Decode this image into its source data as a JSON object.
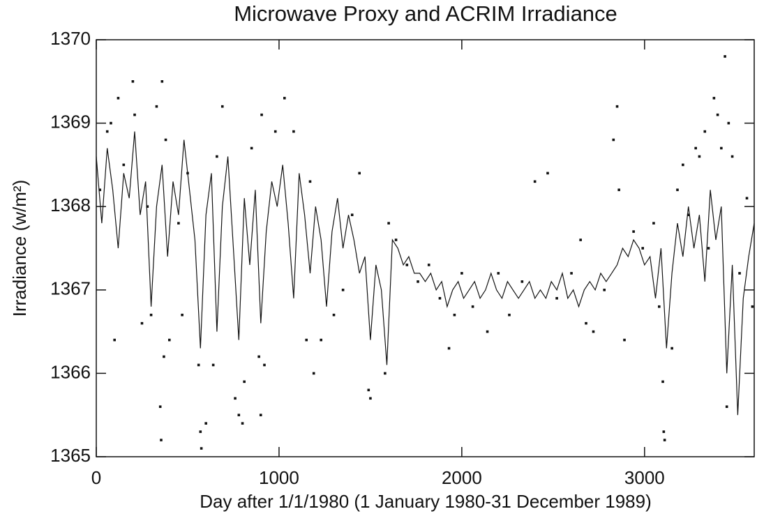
{
  "chart_data": {
    "type": "combo",
    "title": "Microwave Proxy and ACRIM Irradiance",
    "x_label": "Day after 1/1/1980 (1 January 1980-31 December 1989)",
    "y_label": "Irradiance (w/m²)",
    "xlim": [
      0,
      3600
    ],
    "xticks": [
      0,
      1000,
      2000,
      3000
    ],
    "ylim": [
      1365,
      1370
    ],
    "yticks": [
      1365,
      1366,
      1367,
      1368,
      1369,
      1370
    ],
    "series": [
      {
        "type": "line",
        "color": "#111111",
        "x": [
          0,
          30,
          60,
          90,
          120,
          150,
          180,
          210,
          240,
          270,
          300,
          330,
          360,
          390,
          420,
          450,
          480,
          510,
          540,
          570,
          600,
          630,
          660,
          690,
          720,
          750,
          780,
          810,
          840,
          870,
          900,
          930,
          960,
          990,
          1020,
          1050,
          1080,
          1110,
          1140,
          1170,
          1200,
          1230,
          1260,
          1290,
          1320,
          1350,
          1380,
          1410,
          1440,
          1470,
          1500,
          1530,
          1560,
          1590,
          1620,
          1650,
          1680,
          1710,
          1740,
          1770,
          1800,
          1830,
          1860,
          1890,
          1920,
          1950,
          1980,
          2010,
          2040,
          2070,
          2100,
          2130,
          2160,
          2190,
          2220,
          2250,
          2280,
          2310,
          2340,
          2370,
          2400,
          2430,
          2460,
          2490,
          2520,
          2550,
          2580,
          2610,
          2640,
          2670,
          2700,
          2730,
          2760,
          2790,
          2820,
          2850,
          2880,
          2910,
          2940,
          2970,
          3000,
          3030,
          3060,
          3090,
          3120,
          3150,
          3180,
          3210,
          3240,
          3270,
          3300,
          3330,
          3360,
          3390,
          3420,
          3450,
          3480,
          3510,
          3540,
          3570,
          3600
        ],
        "values": [
          1368.6,
          1367.8,
          1368.7,
          1368.2,
          1367.5,
          1368.4,
          1368.1,
          1368.9,
          1367.9,
          1368.3,
          1366.8,
          1368.0,
          1368.5,
          1367.4,
          1368.3,
          1367.9,
          1368.8,
          1368.2,
          1367.6,
          1366.3,
          1367.9,
          1368.4,
          1366.5,
          1368.0,
          1368.6,
          1367.5,
          1366.4,
          1368.1,
          1367.3,
          1368.2,
          1366.6,
          1367.7,
          1368.3,
          1368.0,
          1368.5,
          1367.8,
          1366.9,
          1368.4,
          1367.9,
          1367.2,
          1368.0,
          1367.6,
          1366.8,
          1367.7,
          1368.1,
          1367.5,
          1367.9,
          1367.6,
          1367.2,
          1367.4,
          1366.4,
          1367.3,
          1367.0,
          1366.1,
          1367.6,
          1367.5,
          1367.3,
          1367.4,
          1367.2,
          1367.2,
          1367.1,
          1367.2,
          1367.0,
          1367.1,
          1366.8,
          1367.0,
          1367.1,
          1366.9,
          1367.0,
          1367.1,
          1366.9,
          1367.0,
          1367.2,
          1367.0,
          1366.9,
          1367.1,
          1367.0,
          1366.9,
          1367.0,
          1367.1,
          1366.9,
          1367.0,
          1366.9,
          1367.1,
          1367.0,
          1367.2,
          1366.9,
          1367.0,
          1366.8,
          1367.0,
          1367.1,
          1367.0,
          1367.2,
          1367.1,
          1367.2,
          1367.3,
          1367.5,
          1367.4,
          1367.6,
          1367.5,
          1367.3,
          1367.4,
          1366.9,
          1367.5,
          1366.3,
          1367.2,
          1367.8,
          1367.4,
          1368.0,
          1367.5,
          1367.9,
          1367.1,
          1368.2,
          1367.6,
          1368.0,
          1366.0,
          1367.3,
          1365.5,
          1366.9,
          1367.4,
          1367.8
        ]
      },
      {
        "type": "scatter",
        "color": "#111111",
        "x": [
          20,
          60,
          80,
          100,
          120,
          150,
          200,
          210,
          250,
          280,
          300,
          330,
          350,
          355,
          360,
          370,
          380,
          400,
          450,
          470,
          500,
          560,
          570,
          575,
          600,
          640,
          660,
          690,
          760,
          780,
          800,
          810,
          850,
          890,
          900,
          905,
          920,
          980,
          1030,
          1080,
          1150,
          1170,
          1190,
          1230,
          1300,
          1350,
          1400,
          1440,
          1490,
          1500,
          1580,
          1600,
          1640,
          1700,
          1760,
          1820,
          1880,
          1930,
          1960,
          2000,
          2060,
          2140,
          2200,
          2260,
          2330,
          2400,
          2470,
          2520,
          2600,
          2650,
          2680,
          2720,
          2780,
          2830,
          2850,
          2860,
          2890,
          2940,
          2990,
          3050,
          3080,
          3100,
          3105,
          3110,
          3150,
          3180,
          3210,
          3240,
          3280,
          3300,
          3330,
          3350,
          3380,
          3400,
          3420,
          3440,
          3450,
          3460,
          3480,
          3520,
          3560,
          3590
        ],
        "values": [
          1368.2,
          1368.9,
          1369.0,
          1366.4,
          1369.3,
          1368.5,
          1369.5,
          1369.1,
          1366.6,
          1368.0,
          1366.7,
          1369.2,
          1365.6,
          1365.2,
          1369.5,
          1366.2,
          1368.8,
          1366.4,
          1367.8,
          1366.7,
          1368.4,
          1366.1,
          1365.3,
          1365.1,
          1365.4,
          1366.1,
          1368.6,
          1369.2,
          1365.7,
          1365.5,
          1365.4,
          1365.9,
          1368.7,
          1366.2,
          1365.5,
          1369.1,
          1366.1,
          1368.9,
          1369.3,
          1368.9,
          1366.4,
          1368.3,
          1366.0,
          1366.4,
          1366.7,
          1367.0,
          1367.9,
          1368.4,
          1365.8,
          1365.7,
          1366.0,
          1367.8,
          1367.6,
          1367.3,
          1367.1,
          1367.3,
          1366.9,
          1366.3,
          1366.7,
          1367.2,
          1366.8,
          1366.5,
          1367.2,
          1366.7,
          1367.1,
          1368.3,
          1368.4,
          1366.9,
          1367.2,
          1367.6,
          1366.6,
          1366.5,
          1367.0,
          1368.8,
          1369.2,
          1368.2,
          1366.4,
          1367.7,
          1367.5,
          1367.8,
          1366.8,
          1365.9,
          1365.3,
          1365.2,
          1366.3,
          1368.2,
          1368.5,
          1367.9,
          1368.7,
          1368.6,
          1368.9,
          1367.5,
          1369.3,
          1369.1,
          1368.7,
          1369.8,
          1365.6,
          1369.0,
          1368.6,
          1367.2,
          1368.1,
          1366.8
        ]
      }
    ]
  }
}
